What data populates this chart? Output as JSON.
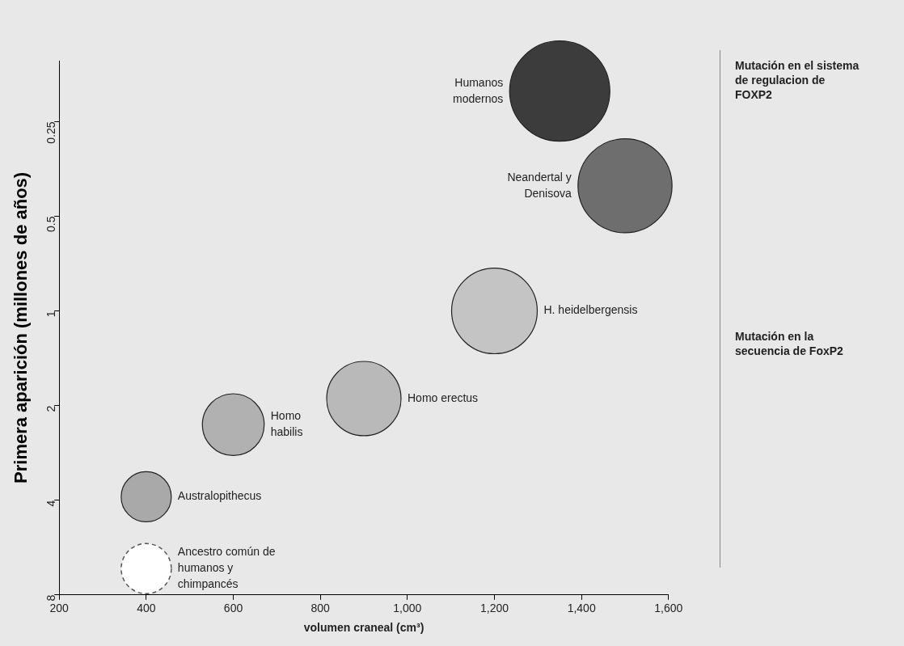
{
  "chart_data": {
    "type": "bubble",
    "ylabel": "Primera aparición (millones de años)",
    "xlabel": "volumen craneal (cm³)",
    "log": "y",
    "ylim": [
      8,
      0.16
    ],
    "yticks": [
      0.25,
      0.5,
      1,
      2,
      4,
      8
    ],
    "xlim": [
      200,
      1600
    ],
    "xticks": [
      200,
      400,
      600,
      800,
      {
        "value": 1000,
        "label": "1,000"
      },
      {
        "value": 1200,
        "label": "1,200"
      },
      {
        "value": 1400,
        "label": "1,400"
      },
      {
        "value": 1600,
        "label": "1,600"
      }
    ],
    "grid": false,
    "legend": false,
    "series": [
      {
        "name": "Humanos modernos",
        "color": "#3c3c3c",
        "x": [
          1350
        ],
        "values": [
          0.2
        ],
        "sizes": [
          1
        ]
      },
      {
        "name": "Neandertal y Denisova",
        "color": "#6e6e6e",
        "x": [
          1500
        ],
        "values": [
          0.4
        ],
        "sizes": [
          0.88
        ]
      },
      {
        "name": "H. heidelbergensis",
        "color": "#c4c4c4",
        "x": [
          1200
        ],
        "values": [
          1
        ],
        "sizes": [
          0.73
        ]
      },
      {
        "name": "Homo erectus",
        "color": "#b9b9b9",
        "x": [
          900
        ],
        "values": [
          1.9
        ],
        "sizes": [
          0.55
        ]
      },
      {
        "name": "Homo habilis",
        "color": "#b1b1b1",
        "x": [
          600
        ],
        "values": [
          2.3
        ],
        "sizes": [
          0.38
        ]
      },
      {
        "name": "Australopithecus",
        "color": "#a9a9a9",
        "x": [
          400
        ],
        "values": [
          3.9
        ],
        "sizes": [
          0.25
        ]
      },
      {
        "name": "Ancestro común de humanos y chimpancés",
        "color": "#ffffff",
        "line_style": "dashed",
        "x": [
          400
        ],
        "values": [
          6.6
        ],
        "sizes": [
          0.25
        ]
      }
    ],
    "annotations": [
      "Mutación en el sistema de regulacion de FOXP2",
      "Mutación en la secuencia de FoxP2"
    ]
  }
}
